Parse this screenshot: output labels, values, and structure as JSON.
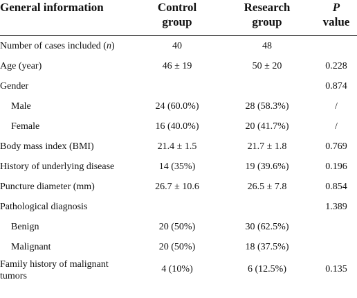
{
  "header": {
    "cells": [
      "General information",
      "Control group",
      "Research group"
    ],
    "p_value": {
      "italic": "P",
      "text": "value"
    }
  },
  "rows": [
    {
      "cells": [
        [
          "Number of cases included (",
          "n",
          ")"
        ],
        "40",
        "48",
        null
      ]
    },
    {
      "cells": [
        "Age (year)",
        "46 ± 19",
        "50 ± 20",
        "0.228"
      ]
    },
    {
      "cells": [
        "Gender",
        null,
        null,
        "0.874"
      ]
    },
    {
      "cells": [
        "Male",
        "24 (60.0%)",
        "28 (58.3%)",
        "/"
      ],
      "indent": true
    },
    {
      "cells": [
        "Female",
        "16 (40.0%)",
        "20 (41.7%)",
        "/"
      ],
      "indent": true
    },
    {
      "cells": [
        "Body mass index (BMI)",
        "21.4 ± 1.5",
        "21.7 ± 1.8",
        "0.769"
      ]
    },
    {
      "cells": [
        "History of underlying disease",
        "14 (35%)",
        "19 (39.6%)",
        "0.196"
      ]
    },
    {
      "cells": [
        "Puncture diameter (mm)",
        "26.7 ± 10.6",
        "26.5 ± 7.8",
        "0.854"
      ]
    },
    {
      "cells": [
        "Pathological diagnosis",
        null,
        null,
        "1.389"
      ]
    },
    {
      "cells": [
        "Benign",
        "20 (50%)",
        "30 (62.5%)",
        null
      ],
      "indent": true
    },
    {
      "cells": [
        "Malignant",
        "20 (50%)",
        "18 (37.5%)",
        null
      ],
      "indent": true
    },
    {
      "cells": [
        "Family history of malignant tumors",
        "4 (10%)",
        "6 (12.5%)",
        "0.135"
      ]
    }
  ]
}
